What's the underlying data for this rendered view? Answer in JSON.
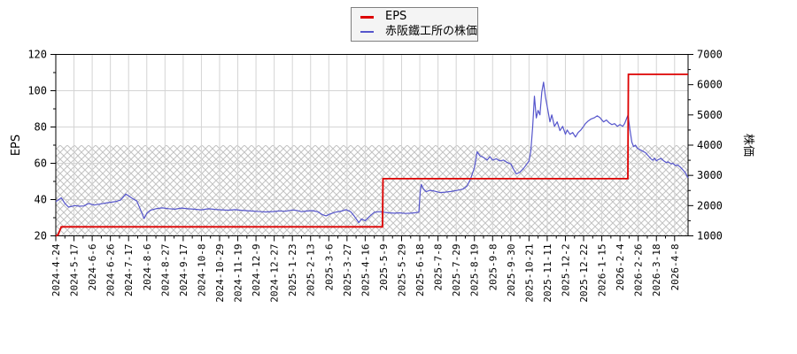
{
  "legend": {
    "items": [
      {
        "label": "EPS",
        "color": "#dd0000"
      },
      {
        "label": "赤阪鐵工所の株価",
        "color": "#5555cc"
      }
    ]
  },
  "style_colors": {
    "grid": "#d4d4d4",
    "hatch": "#c2c2c2",
    "axis": "#000000",
    "eps_line": "#dd0000",
    "stock_line": "#5555cc"
  },
  "chart_data": {
    "type": "line",
    "title": "",
    "legend_position": "top-center",
    "grid": true,
    "x_unit": "position in x-axis label intervals (0 = first label, 1 interval = 1 labeled tick step)",
    "x_tick_labels": [
      "2024-4-24",
      "2024-5-17",
      "2024-6-6",
      "2024-6-26",
      "2024-7-17",
      "2024-8-6",
      "2024-8-27",
      "2024-9-17",
      "2024-10-8",
      "2024-10-29",
      "2024-11-19",
      "2024-12-9",
      "2024-12-27",
      "2025-1-23",
      "2025-2-13",
      "2025-3-6",
      "2025-3-27",
      "2025-4-16",
      "2025-5-9",
      "2025-5-29",
      "2025-6-18",
      "2025-7-8",
      "2025-7-29",
      "2025-8-19",
      "2025-9-8",
      "2025-9-30",
      "2025-10-21",
      "2025-11-11",
      "2025-12-2",
      "2025-12-22",
      "2026-1-15",
      "2026-2-4",
      "2026-2-26",
      "2026-3-18",
      "2026-4-8"
    ],
    "x_max_pos": 34.74,
    "left_axis": {
      "label": "EPS",
      "min": 20,
      "max": 120,
      "major_ticks": [
        20,
        40,
        60,
        80,
        100,
        120
      ],
      "minor_step": 10
    },
    "right_axis": {
      "label": "株価",
      "min": 1000,
      "max": 7000,
      "major_ticks": [
        1000,
        2000,
        3000,
        4000,
        5000,
        6000,
        7000
      ],
      "minor_step": 500
    },
    "hatch_band": {
      "axis": "left",
      "from": 20,
      "to": 70,
      "note": "cross-hatched band, equals 1000-4000 on right axis"
    },
    "series": [
      {
        "name": "EPS",
        "axis": "left",
        "color": "#dd0000",
        "step_values": [
          25,
          51.5,
          109
        ],
        "points": [
          [
            0,
            20
          ],
          [
            0.12,
            20.5
          ],
          [
            0.3,
            25
          ],
          [
            17.95,
            25
          ],
          [
            17.98,
            51.5
          ],
          [
            31.43,
            51.5
          ],
          [
            31.46,
            109
          ],
          [
            34.74,
            109
          ]
        ]
      },
      {
        "name": "赤阪鐵工所の株価",
        "axis": "right",
        "color": "#5555cc",
        "points": [
          [
            0,
            2130
          ],
          [
            0.3,
            2260
          ],
          [
            0.5,
            2070
          ],
          [
            0.7,
            1950
          ],
          [
            1.05,
            2000
          ],
          [
            1.3,
            1980
          ],
          [
            1.55,
            1990
          ],
          [
            1.8,
            2070
          ],
          [
            2.1,
            2020
          ],
          [
            2.5,
            2060
          ],
          [
            2.9,
            2100
          ],
          [
            3.25,
            2130
          ],
          [
            3.55,
            2180
          ],
          [
            3.85,
            2380
          ],
          [
            4,
            2320
          ],
          [
            4.2,
            2240
          ],
          [
            4.45,
            2150
          ],
          [
            4.7,
            1800
          ],
          [
            4.85,
            1570
          ],
          [
            5,
            1750
          ],
          [
            5.2,
            1850
          ],
          [
            5.5,
            1895
          ],
          [
            5.85,
            1925
          ],
          [
            6.2,
            1900
          ],
          [
            6.55,
            1880
          ],
          [
            6.9,
            1920
          ],
          [
            7.25,
            1895
          ],
          [
            7.6,
            1880
          ],
          [
            8,
            1860
          ],
          [
            8.4,
            1895
          ],
          [
            8.75,
            1875
          ],
          [
            9.1,
            1860
          ],
          [
            9.5,
            1850
          ],
          [
            9.85,
            1865
          ],
          [
            10.2,
            1845
          ],
          [
            10.55,
            1830
          ],
          [
            10.95,
            1815
          ],
          [
            11.3,
            1800
          ],
          [
            11.55,
            1790
          ],
          [
            11.95,
            1805
          ],
          [
            12.3,
            1825
          ],
          [
            12.6,
            1815
          ],
          [
            13,
            1855
          ],
          [
            13.25,
            1840
          ],
          [
            13.5,
            1800
          ],
          [
            13.75,
            1820
          ],
          [
            14.1,
            1835
          ],
          [
            14.4,
            1795
          ],
          [
            14.65,
            1700
          ],
          [
            14.85,
            1660
          ],
          [
            15.05,
            1720
          ],
          [
            15.35,
            1780
          ],
          [
            15.7,
            1820
          ],
          [
            15.95,
            1865
          ],
          [
            16.2,
            1800
          ],
          [
            16.4,
            1650
          ],
          [
            16.65,
            1440
          ],
          [
            16.8,
            1560
          ],
          [
            17,
            1500
          ],
          [
            17.25,
            1650
          ],
          [
            17.5,
            1780
          ],
          [
            17.75,
            1800
          ],
          [
            18,
            1780
          ],
          [
            18.3,
            1760
          ],
          [
            18.6,
            1750
          ],
          [
            18.9,
            1760
          ],
          [
            19.2,
            1740
          ],
          [
            19.5,
            1750
          ],
          [
            19.75,
            1765
          ],
          [
            19.95,
            1785
          ],
          [
            20.02,
            2450
          ],
          [
            20.08,
            2700
          ],
          [
            20.2,
            2550
          ],
          [
            20.35,
            2460
          ],
          [
            20.55,
            2505
          ],
          [
            20.8,
            2480
          ],
          [
            21.1,
            2430
          ],
          [
            21.4,
            2445
          ],
          [
            21.7,
            2465
          ],
          [
            22,
            2500
          ],
          [
            22.2,
            2525
          ],
          [
            22.4,
            2555
          ],
          [
            22.6,
            2650
          ],
          [
            22.8,
            2900
          ],
          [
            23,
            3250
          ],
          [
            23.15,
            3780
          ],
          [
            23.3,
            3650
          ],
          [
            23.5,
            3595
          ],
          [
            23.7,
            3505
          ],
          [
            23.85,
            3620
          ],
          [
            24,
            3505
          ],
          [
            24.2,
            3550
          ],
          [
            24.4,
            3480
          ],
          [
            24.6,
            3505
          ],
          [
            24.8,
            3425
          ],
          [
            25,
            3380
          ],
          [
            25.15,
            3200
          ],
          [
            25.3,
            3050
          ],
          [
            25.5,
            3105
          ],
          [
            25.7,
            3230
          ],
          [
            25.85,
            3350
          ],
          [
            26,
            3480
          ],
          [
            26.1,
            3800
          ],
          [
            26.2,
            4600
          ],
          [
            26.3,
            5620
          ],
          [
            26.4,
            4900
          ],
          [
            26.5,
            5150
          ],
          [
            26.6,
            5000
          ],
          [
            26.7,
            5750
          ],
          [
            26.8,
            6080
          ],
          [
            26.9,
            5600
          ],
          [
            27.05,
            5120
          ],
          [
            27.15,
            4770
          ],
          [
            27.25,
            5000
          ],
          [
            27.4,
            4620
          ],
          [
            27.55,
            4770
          ],
          [
            27.7,
            4480
          ],
          [
            27.85,
            4620
          ],
          [
            28,
            4360
          ],
          [
            28.1,
            4500
          ],
          [
            28.25,
            4360
          ],
          [
            28.4,
            4420
          ],
          [
            28.55,
            4270
          ],
          [
            28.7,
            4420
          ],
          [
            28.85,
            4500
          ],
          [
            29,
            4620
          ],
          [
            29.1,
            4710
          ],
          [
            29.25,
            4800
          ],
          [
            29.4,
            4860
          ],
          [
            29.6,
            4910
          ],
          [
            29.75,
            4970
          ],
          [
            29.9,
            4910
          ],
          [
            30,
            4830
          ],
          [
            30.1,
            4770
          ],
          [
            30.25,
            4830
          ],
          [
            30.4,
            4740
          ],
          [
            30.55,
            4680
          ],
          [
            30.7,
            4710
          ],
          [
            30.85,
            4620
          ],
          [
            31,
            4680
          ],
          [
            31.15,
            4620
          ],
          [
            31.25,
            4710
          ],
          [
            31.35,
            4860
          ],
          [
            31.44,
            5000
          ],
          [
            31.55,
            4500
          ],
          [
            31.65,
            4100
          ],
          [
            31.75,
            3950
          ],
          [
            31.85,
            4000
          ],
          [
            31.95,
            3900
          ],
          [
            32.1,
            3850
          ],
          [
            32.25,
            3800
          ],
          [
            32.4,
            3750
          ],
          [
            32.55,
            3650
          ],
          [
            32.7,
            3550
          ],
          [
            32.8,
            3500
          ],
          [
            32.9,
            3570
          ],
          [
            33,
            3480
          ],
          [
            33.1,
            3520
          ],
          [
            33.25,
            3560
          ],
          [
            33.4,
            3480
          ],
          [
            33.55,
            3420
          ],
          [
            33.65,
            3450
          ],
          [
            33.8,
            3380
          ],
          [
            33.9,
            3400
          ],
          [
            34.05,
            3320
          ],
          [
            34.15,
            3350
          ],
          [
            34.3,
            3280
          ],
          [
            34.4,
            3220
          ],
          [
            34.5,
            3150
          ],
          [
            34.6,
            3080
          ],
          [
            34.68,
            2980
          ],
          [
            34.74,
            2920
          ]
        ]
      }
    ]
  }
}
